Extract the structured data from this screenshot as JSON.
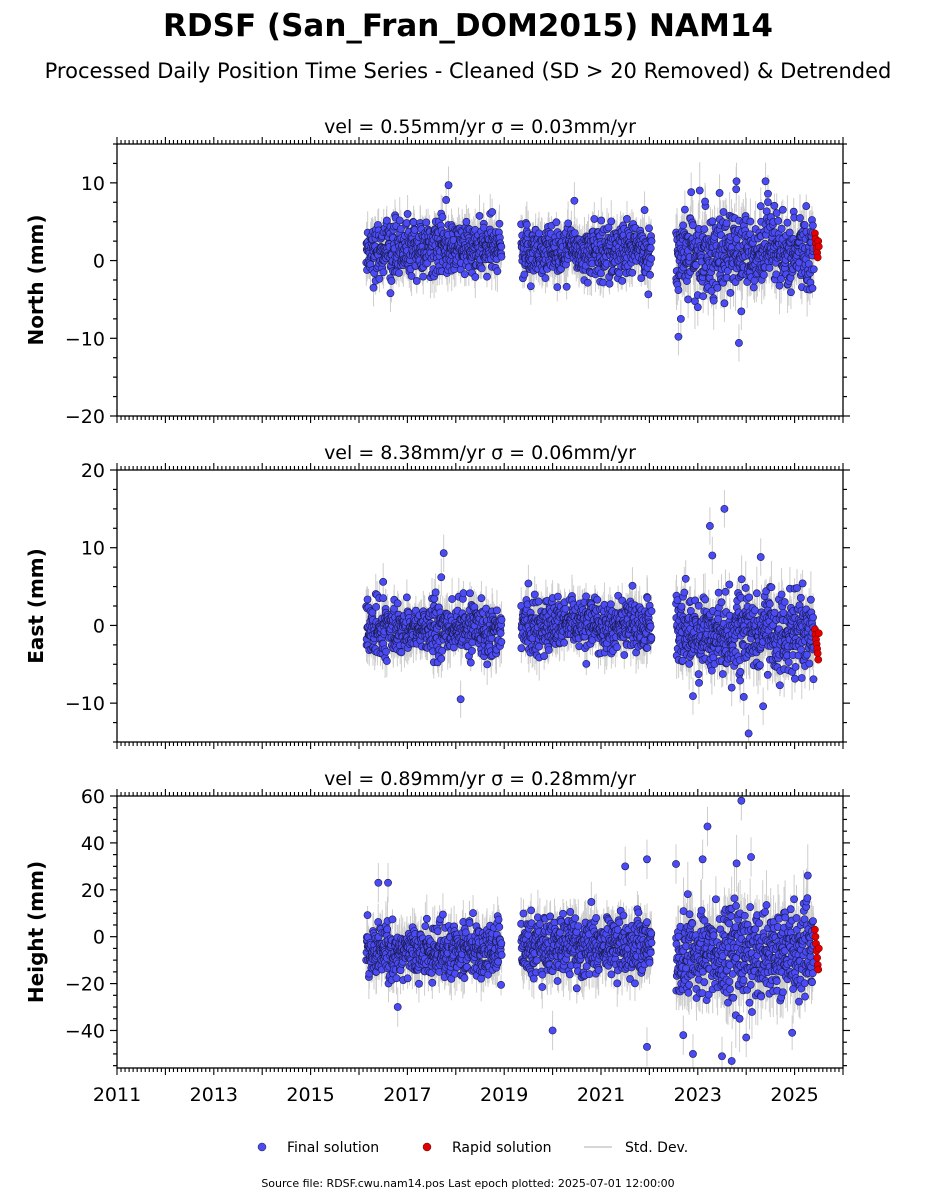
{
  "title": "RDSF (San_Fran_DOM2015) NAM14",
  "subtitle": "Processed Daily Position Time Series - Cleaned (SD > 20 Removed) & Detrended",
  "source_note": "Source file: RDSF.cwu.nam14.pos  Last epoch plotted: 2025-07-01 12:00:00",
  "chart_data": [
    {
      "type": "scatter",
      "component": "north",
      "title": "vel = 0.55mm/yr   σ = 0.03mm/yr",
      "ylabel": "North (mm)",
      "xlim": [
        2011,
        2026
      ],
      "ylim": [
        -20,
        15
      ],
      "yticks": [
        -20,
        -10,
        0,
        10
      ],
      "xticks": [
        2011,
        2013,
        2015,
        2017,
        2019,
        2021,
        2023,
        2025
      ],
      "segments": [
        {
          "start": 2016.15,
          "end": 2018.95,
          "center": 1.5,
          "spread": 1.7,
          "sd": 2.0
        },
        {
          "start": 2019.35,
          "end": 2022.05,
          "center": 1.3,
          "spread": 1.7,
          "sd": 2.0
        },
        {
          "start": 2022.55,
          "end": 2025.4,
          "center": 1.0,
          "spread": 2.4,
          "sd": 2.5
        }
      ],
      "rapid": {
        "start": 2025.42,
        "end": 2025.5,
        "values": [
          3.5,
          2.8,
          2.2,
          1.6,
          1.0,
          0.4,
          2.5,
          1.8
        ]
      },
      "outliers": [
        [
          2017.85,
          9.7
        ],
        [
          2017.8,
          7.8
        ],
        [
          2016.65,
          -4.2
        ],
        [
          2016.3,
          -3.5
        ],
        [
          2019.55,
          -3.3
        ],
        [
          2020.45,
          7.7
        ],
        [
          2021.9,
          6.5
        ],
        [
          2022.6,
          -9.8
        ],
        [
          2022.65,
          -7.5
        ],
        [
          2023.15,
          7.6
        ],
        [
          2023.45,
          8.7
        ],
        [
          2023.8,
          10.2
        ],
        [
          2023.85,
          -10.6
        ],
        [
          2024.4,
          10.2
        ],
        [
          2024.45,
          8.6
        ],
        [
          2023.0,
          -6.0
        ],
        [
          2023.55,
          -5.5
        ],
        [
          2024.3,
          7.0
        ],
        [
          2022.8,
          -5.0
        ]
      ]
    },
    {
      "type": "scatter",
      "component": "east",
      "title": "vel = 8.38mm/yr   σ = 0.06mm/yr",
      "ylabel": "East (mm)",
      "xlim": [
        2011,
        2026
      ],
      "ylim": [
        -15,
        20
      ],
      "yticks": [
        -10,
        0,
        10,
        20
      ],
      "xticks": [
        2011,
        2013,
        2015,
        2017,
        2019,
        2021,
        2023,
        2025
      ],
      "segments": [
        {
          "start": 2016.15,
          "end": 2018.95,
          "center": -0.5,
          "spread": 1.6,
          "sd": 2.0
        },
        {
          "start": 2019.35,
          "end": 2022.05,
          "center": 0.0,
          "spread": 1.6,
          "sd": 2.0
        },
        {
          "start": 2022.55,
          "end": 2025.4,
          "center": -1.0,
          "spread": 2.3,
          "sd": 2.5
        }
      ],
      "rapid": {
        "start": 2025.42,
        "end": 2025.5,
        "values": [
          -0.5,
          -1.2,
          -1.8,
          -2.4,
          -3.0,
          -3.6,
          -4.4,
          -1.0
        ]
      },
      "outliers": [
        [
          2017.75,
          9.3
        ],
        [
          2017.7,
          6.2
        ],
        [
          2016.5,
          5.6
        ],
        [
          2018.1,
          -9.5
        ],
        [
          2019.5,
          5.4
        ],
        [
          2021.65,
          5.1
        ],
        [
          2022.9,
          -9.1
        ],
        [
          2023.25,
          12.8
        ],
        [
          2023.55,
          15.0
        ],
        [
          2023.95,
          -9.2
        ],
        [
          2024.05,
          -13.9
        ],
        [
          2024.3,
          8.8
        ],
        [
          2024.35,
          -10.4
        ],
        [
          2023.3,
          9.0
        ],
        [
          2022.75,
          6.0
        ],
        [
          2023.7,
          -8.0
        ]
      ]
    },
    {
      "type": "scatter",
      "component": "height",
      "title": "vel = 0.89mm/yr   σ = 0.28mm/yr",
      "ylabel": "Height (mm)",
      "xlim": [
        2011,
        2026
      ],
      "ylim": [
        -56,
        60
      ],
      "yticks": [
        -40,
        -20,
        0,
        20,
        40,
        60
      ],
      "xticks": [
        2011,
        2013,
        2015,
        2017,
        2019,
        2021,
        2023,
        2025
      ],
      "segments": [
        {
          "start": 2016.15,
          "end": 2018.95,
          "center": -6.0,
          "spread": 5.5,
          "sd": 7.0
        },
        {
          "start": 2019.35,
          "end": 2022.05,
          "center": -4.0,
          "spread": 6.0,
          "sd": 8.0
        },
        {
          "start": 2022.55,
          "end": 2025.4,
          "center": -7.0,
          "spread": 10.0,
          "sd": 10.0
        }
      ],
      "rapid": {
        "start": 2025.42,
        "end": 2025.5,
        "values": [
          3,
          0,
          -3,
          -6,
          -9,
          -12,
          -14,
          -5
        ]
      },
      "outliers": [
        [
          2016.4,
          23
        ],
        [
          2016.6,
          23
        ],
        [
          2016.8,
          -30
        ],
        [
          2020.0,
          -40
        ],
        [
          2021.5,
          30
        ],
        [
          2021.95,
          33
        ],
        [
          2021.95,
          -47
        ],
        [
          2022.55,
          31
        ],
        [
          2023.2,
          47
        ],
        [
          2023.9,
          58
        ],
        [
          2023.5,
          -51
        ],
        [
          2023.7,
          -53
        ],
        [
          2022.9,
          -50
        ],
        [
          2024.0,
          -43
        ],
        [
          2024.1,
          34
        ],
        [
          2023.1,
          33
        ],
        [
          2022.7,
          -42
        ]
      ]
    }
  ],
  "legend": {
    "placement": "bottom-center",
    "items": [
      {
        "label": "Final solution",
        "color": "#4b4bf5",
        "marker": "circle"
      },
      {
        "label": "Rapid solution",
        "color": "#e50000",
        "marker": "circle"
      },
      {
        "label": "Std. Dev.",
        "color": "#c8c8c8",
        "marker": "line"
      }
    ]
  },
  "colors": {
    "final": "#4b4bf5",
    "rapid": "#e50000",
    "sd": "#c8c8c8",
    "edge": "#1a1a4a"
  }
}
